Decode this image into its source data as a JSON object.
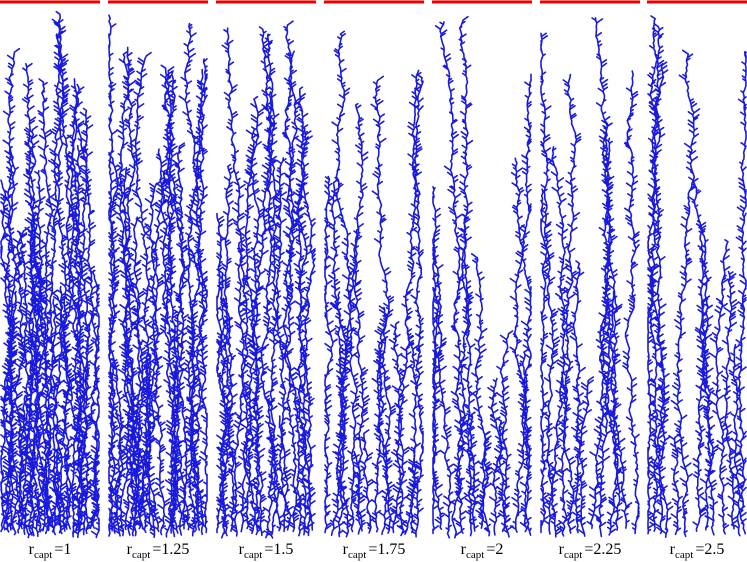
{
  "panels": [
    {
      "symbol": "r",
      "subscript": "capt",
      "value": "=1"
    },
    {
      "symbol": "r",
      "subscript": "capt",
      "value": "=1.25"
    },
    {
      "symbol": "r",
      "subscript": "capt",
      "value": "=1.5"
    },
    {
      "symbol": "r",
      "subscript": "capt",
      "value": "=1.75"
    },
    {
      "symbol": "r",
      "subscript": "capt",
      "value": "=2"
    },
    {
      "symbol": "r",
      "subscript": "capt",
      "value": "=2.25"
    },
    {
      "symbol": "r",
      "subscript": "capt",
      "value": "=2.5"
    }
  ]
}
